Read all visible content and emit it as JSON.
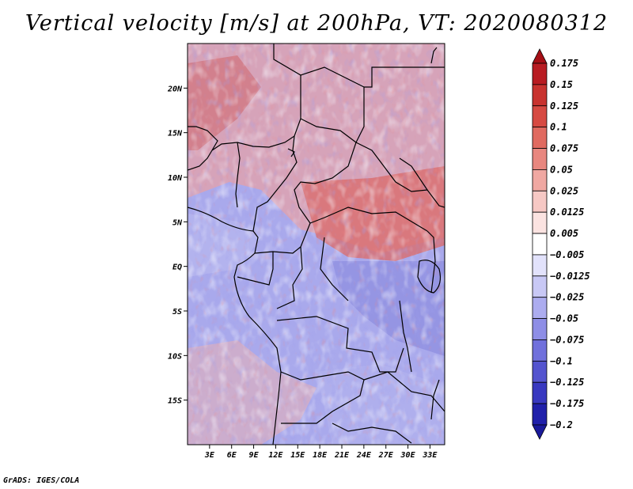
{
  "title": "Vertical velocity [m/s] at 200hPa, VT: 2020080312",
  "footer": "GrADS: IGES/COLA",
  "map": {
    "lon_range": [
      0,
      35
    ],
    "lat_range": [
      -20,
      25
    ],
    "lat_ticks": [
      {
        "value": 20,
        "label": "20N"
      },
      {
        "value": 15,
        "label": "15N"
      },
      {
        "value": 10,
        "label": "10N"
      },
      {
        "value": 5,
        "label": "5N"
      },
      {
        "value": 0,
        "label": "EQ"
      },
      {
        "value": -5,
        "label": "5S"
      },
      {
        "value": -10,
        "label": "10S"
      },
      {
        "value": -15,
        "label": "15S"
      }
    ],
    "lon_ticks": [
      {
        "value": 3,
        "label": "3E"
      },
      {
        "value": 6,
        "label": "6E"
      },
      {
        "value": 9,
        "label": "9E"
      },
      {
        "value": 12,
        "label": "12E"
      },
      {
        "value": 15,
        "label": "15E"
      },
      {
        "value": 18,
        "label": "18E"
      },
      {
        "value": 21,
        "label": "21E"
      },
      {
        "value": 24,
        "label": "24E"
      },
      {
        "value": 27,
        "label": "27E"
      },
      {
        "value": 30,
        "label": "30E"
      },
      {
        "value": 33,
        "label": "33E"
      }
    ]
  },
  "colorbar": {
    "levels": [
      {
        "label": "0.175",
        "color": "#a50f15"
      },
      {
        "label": "0.15",
        "color": "#b81c22"
      },
      {
        "label": "0.125",
        "color": "#c8332f"
      },
      {
        "label": "0.1",
        "color": "#d64a42"
      },
      {
        "label": "0.075",
        "color": "#e06a60"
      },
      {
        "label": "0.05",
        "color": "#e8877f"
      },
      {
        "label": "0.025",
        "color": "#f0a8a2"
      },
      {
        "label": "0.0125",
        "color": "#f6c8c4"
      },
      {
        "label": "0.005",
        "color": "#fbe3e1"
      },
      {
        "label": "−0.005",
        "color": "#ffffff"
      },
      {
        "label": "−0.0125",
        "color": "#e2e2fb"
      },
      {
        "label": "−0.025",
        "color": "#c8c8f5"
      },
      {
        "label": "−0.05",
        "color": "#acacef"
      },
      {
        "label": "−0.075",
        "color": "#8e8ee6"
      },
      {
        "label": "−0.1",
        "color": "#7070dc"
      },
      {
        "label": "−0.125",
        "color": "#5454cf"
      },
      {
        "label": "−0.175",
        "color": "#3838c0"
      },
      {
        "label": "−0.2",
        "color": "#2020aa"
      }
    ],
    "top_color": "#a50f15",
    "bottom_color": "#1a1a9a"
  }
}
